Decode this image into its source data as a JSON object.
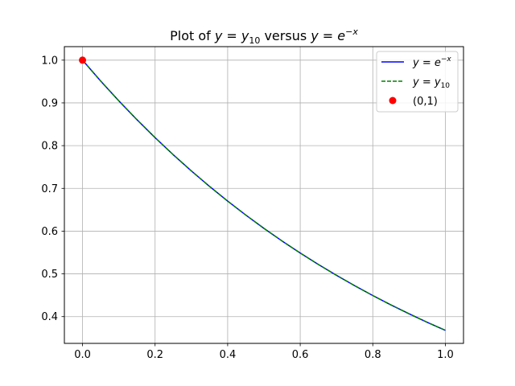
{
  "chart_data": {
    "type": "line",
    "title": {
      "prefix": "Plot of ",
      "mid": " versus ",
      "lhs1": "y",
      "eq1": " = ",
      "rhs1_base": "y",
      "rhs1_sub": "10",
      "lhs2": "y",
      "eq2": " = ",
      "rhs2_base": "e",
      "rhs2_sup": "−x"
    },
    "xlabel": "",
    "ylabel": "",
    "xlim": [
      -0.05,
      1.05
    ],
    "ylim": [
      0.3374,
      1.0316
    ],
    "x_ticks": [
      0.0,
      0.2,
      0.4,
      0.6,
      0.8,
      1.0
    ],
    "x_tick_labels": [
      "0.0",
      "0.2",
      "0.4",
      "0.6",
      "0.8",
      "1.0"
    ],
    "y_ticks": [
      0.4,
      0.5,
      0.6,
      0.7,
      0.8,
      0.9,
      1.0
    ],
    "y_tick_labels": [
      "0.4",
      "0.5",
      "0.6",
      "0.7",
      "0.8",
      "0.9",
      "1.0"
    ],
    "grid": true,
    "legend_position": "upper-right",
    "x": [
      0.0,
      0.05,
      0.1,
      0.15,
      0.2,
      0.25,
      0.3,
      0.35,
      0.4,
      0.45,
      0.5,
      0.55,
      0.6,
      0.65,
      0.7,
      0.75,
      0.8,
      0.85,
      0.9,
      0.95,
      1.0
    ],
    "series": [
      {
        "name": "y = e^{-x}",
        "legend": {
          "lhs": "y",
          "eq": " = ",
          "base": "e",
          "sup": "−x",
          "sub": ""
        },
        "color": "#0000ff",
        "style": "solid",
        "values": [
          1.0,
          0.9512,
          0.9048,
          0.8607,
          0.8187,
          0.7788,
          0.7408,
          0.7047,
          0.6703,
          0.6376,
          0.6065,
          0.5769,
          0.5488,
          0.522,
          0.4966,
          0.4724,
          0.4493,
          0.4274,
          0.4066,
          0.3867,
          0.3679
        ]
      },
      {
        "name": "y = y_{10}",
        "legend": {
          "lhs": "y",
          "eq": " = ",
          "base": "y",
          "sup": "",
          "sub": "10"
        },
        "color": "#008000",
        "style": "dashed",
        "values": [
          1.0,
          0.9512,
          0.9048,
          0.8607,
          0.8187,
          0.7788,
          0.7408,
          0.7047,
          0.6703,
          0.6376,
          0.6065,
          0.5769,
          0.5488,
          0.522,
          0.4966,
          0.4724,
          0.4493,
          0.4274,
          0.4066,
          0.3867,
          0.3679
        ]
      }
    ],
    "points": [
      {
        "name": "(0,1)",
        "x": 0.0,
        "y": 1.0,
        "color": "#ff0000"
      }
    ]
  }
}
